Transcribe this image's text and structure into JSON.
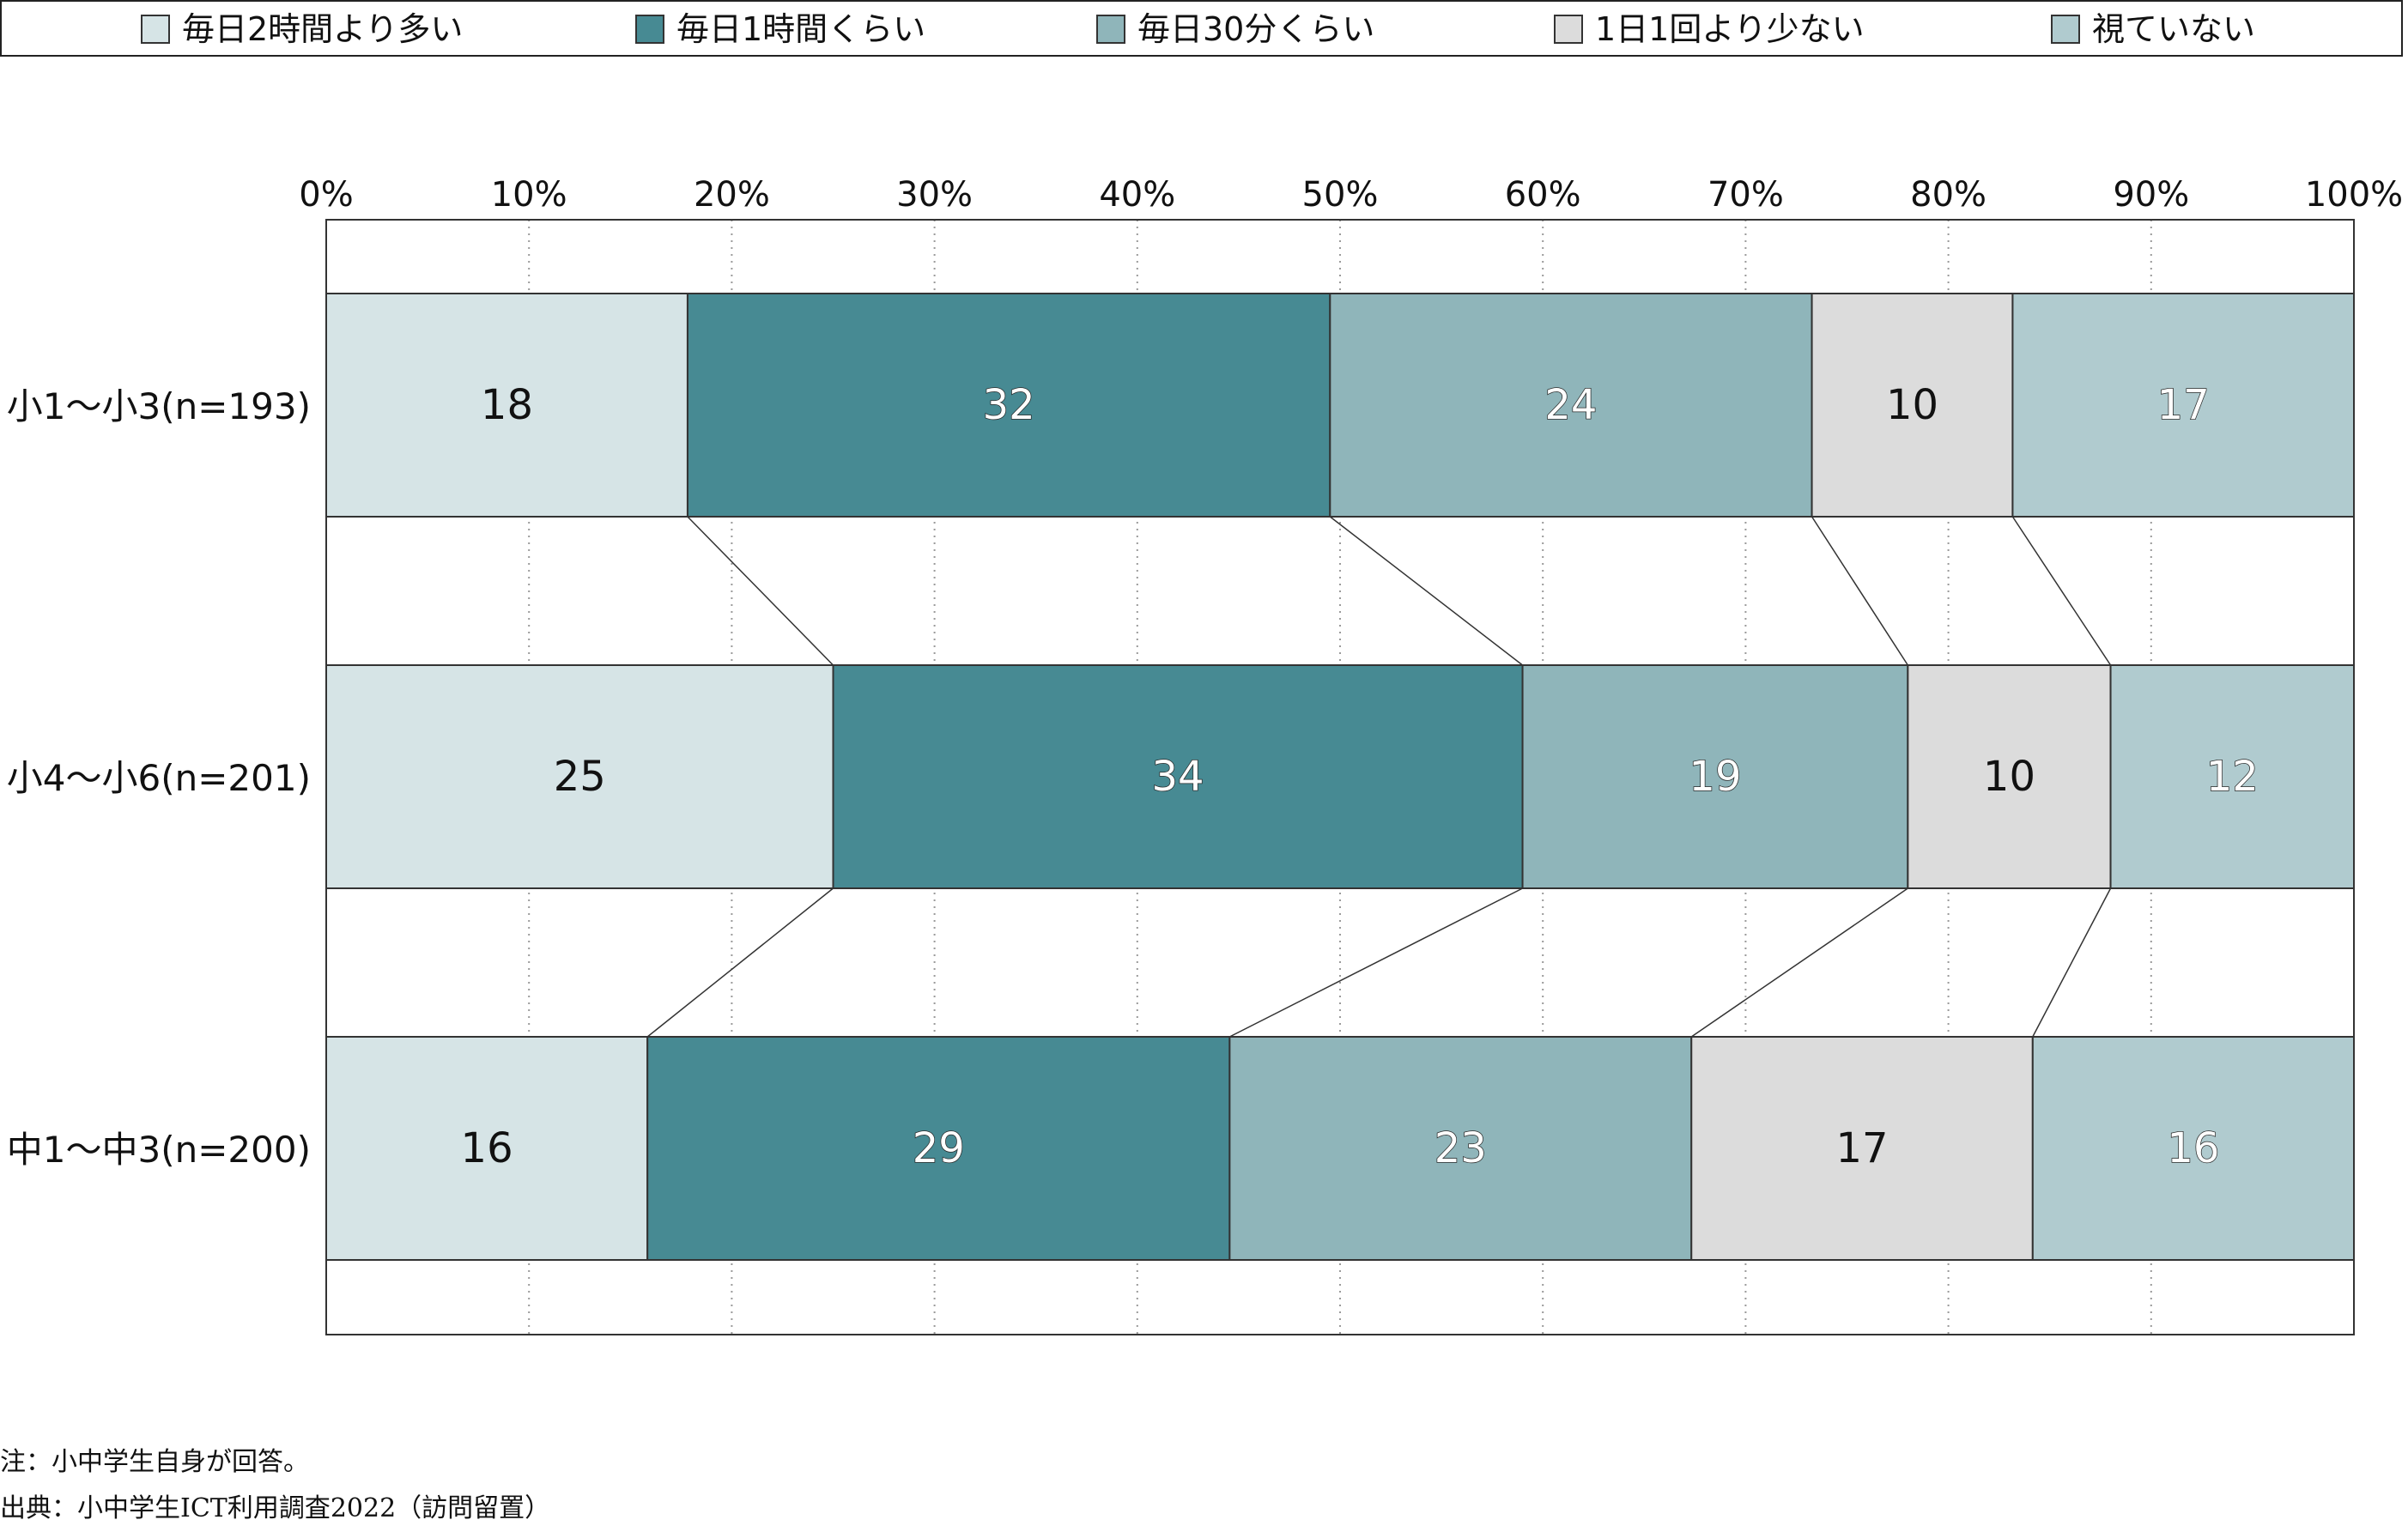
{
  "chart_data": {
    "type": "bar",
    "orientation": "horizontal",
    "stacked": true,
    "percent_scale": true,
    "categories": [
      "小1〜小3(n=193)",
      "小4〜小6(n=201)",
      "中1〜中3(n=200)"
    ],
    "series": [
      {
        "name": "毎日2時間より多い",
        "values": [
          18,
          25,
          16
        ],
        "color": "#d6e4e6",
        "label_color": "#111111"
      },
      {
        "name": "毎日1時間くらい",
        "values": [
          32,
          34,
          29
        ],
        "color": "#478a93",
        "label_color": "#ffffff"
      },
      {
        "name": "毎日30分くらい",
        "values": [
          24,
          19,
          23
        ],
        "color": "#8fb5ba",
        "label_color": "#ffffff"
      },
      {
        "name": "1日1回より少ない",
        "values": [
          10,
          10,
          17
        ],
        "color": "#dcdcdc",
        "label_color": "#111111"
      },
      {
        "name": "視ていない",
        "values": [
          17,
          12,
          16
        ],
        "color": "#b0cbcf",
        "label_color": "#ffffff"
      }
    ],
    "xlim": [
      0,
      100
    ],
    "x_ticks": [
      "0%",
      "10%",
      "20%",
      "30%",
      "40%",
      "50%",
      "60%",
      "70%",
      "80%",
      "90%",
      "100%"
    ],
    "grid": "vertical-dotted",
    "connector_lines": true,
    "legend_position": "top"
  },
  "notes": {
    "note": "注：小中学生自身が回答。",
    "source": "出典：小中学生ICT利用調査2022（訪問留置）"
  }
}
